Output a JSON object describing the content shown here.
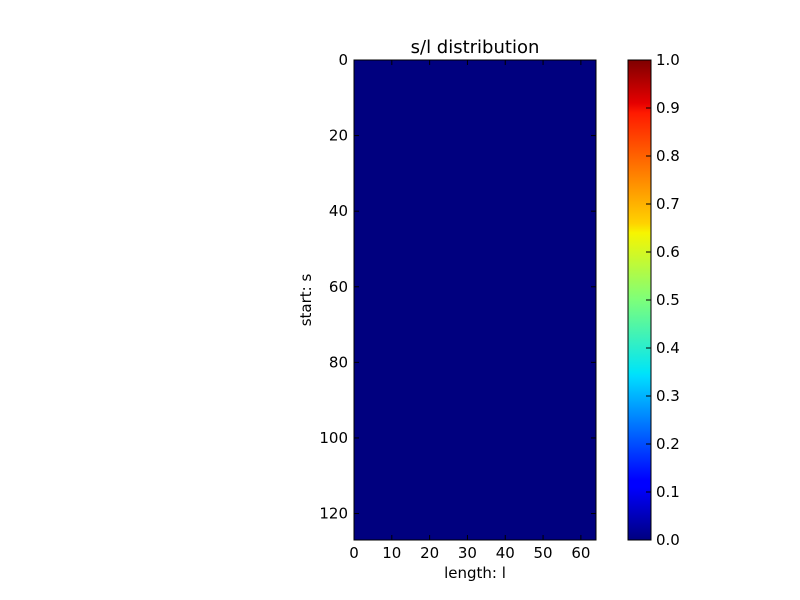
{
  "chart_data": {
    "type": "heatmap",
    "title": "s/l distribution",
    "xlabel": "length: l",
    "ylabel": "start: s",
    "xlim": [
      0,
      64
    ],
    "ylim": [
      127,
      0
    ],
    "xticks": [
      0,
      10,
      20,
      30,
      40,
      50,
      60
    ],
    "yticks": [
      0,
      20,
      40,
      60,
      80,
      100,
      120
    ],
    "values": "all cells 0.0",
    "cell_value": 0.0,
    "colormap": "jet",
    "colorbar": {
      "min": 0.0,
      "max": 1.0,
      "ticks": [
        "0.0",
        "0.1",
        "0.2",
        "0.3",
        "0.4",
        "0.5",
        "0.6",
        "0.7",
        "0.8",
        "0.9",
        "1.0"
      ]
    },
    "grid": false
  },
  "colors": {
    "low": "#00007f",
    "high": "#7f0000"
  }
}
